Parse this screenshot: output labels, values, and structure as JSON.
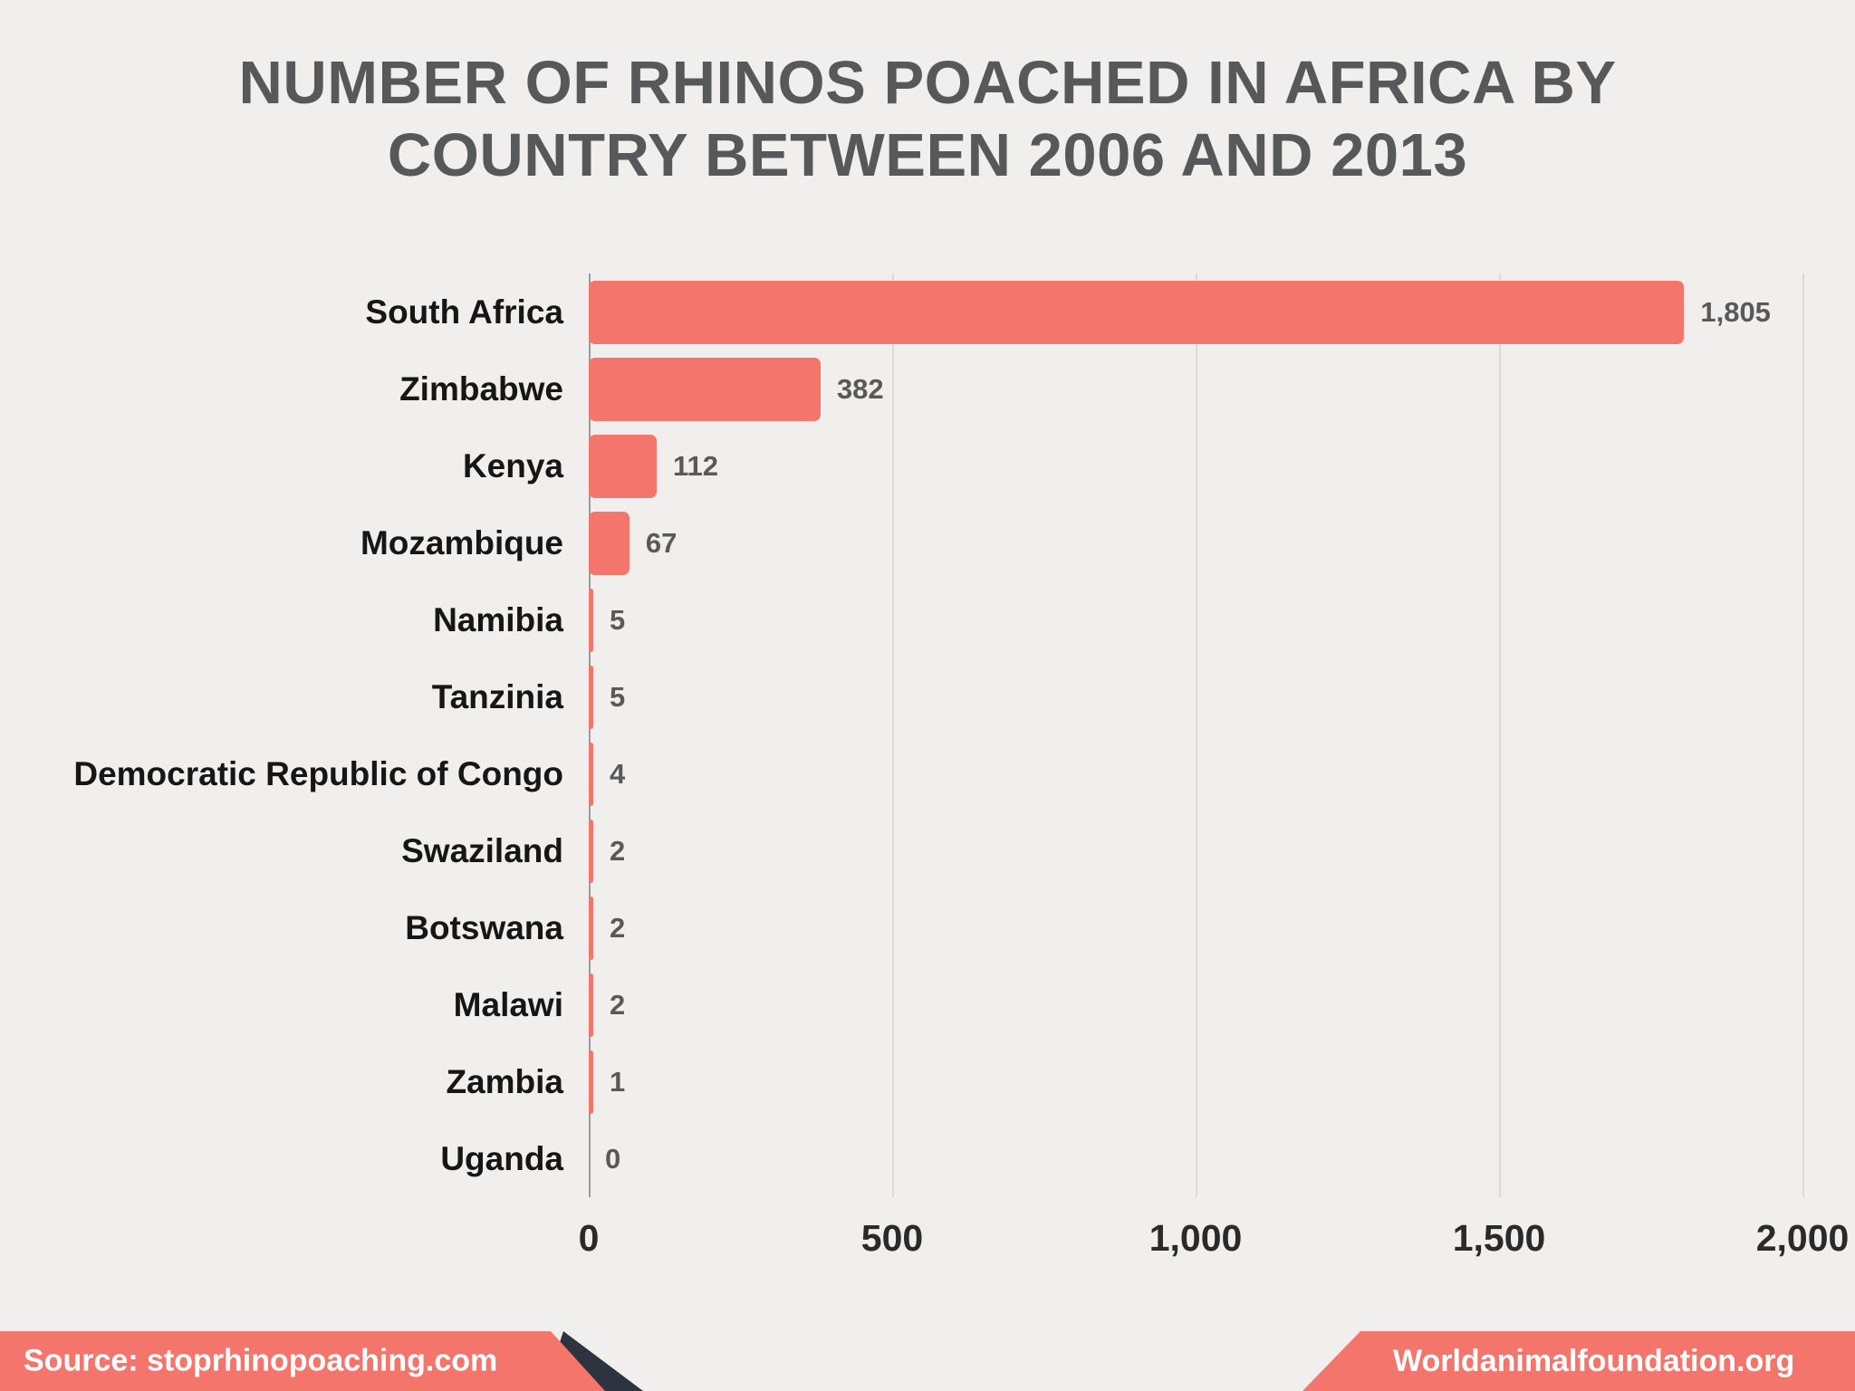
{
  "title": {
    "line1": "NUMBER OF RHINOS POACHED IN AFRICA BY",
    "line2": "COUNTRY BETWEEN 2006 AND 2013"
  },
  "chart_data": {
    "type": "bar",
    "orientation": "horizontal",
    "title": "NUMBER OF RHINOS POACHED IN AFRICA BY COUNTRY BETWEEN 2006 AND 2013",
    "categories": [
      "South Africa",
      "Zimbabwe",
      "Kenya",
      "Mozambique",
      "Namibia",
      "Tanzinia",
      "Democratic Republic of Congo",
      "Swaziland",
      "Botswana",
      "Malawi",
      "Zambia",
      "Uganda"
    ],
    "values": [
      1805,
      382,
      112,
      67,
      5,
      5,
      4,
      2,
      2,
      2,
      1,
      0
    ],
    "value_labels": [
      "1,805",
      "382",
      "112",
      "67",
      "5",
      "5",
      "4",
      "2",
      "2",
      "2",
      "1",
      "0"
    ],
    "xlabel": "",
    "ylabel": "",
    "xlim": [
      0,
      2000
    ],
    "x_ticks": [
      "0",
      "500",
      "1,000",
      "1,500",
      "2,000"
    ],
    "x_tick_values": [
      0,
      500,
      1000,
      1500,
      2000
    ],
    "grid": true,
    "legend": false,
    "bar_color": "#F4756B"
  },
  "footer": {
    "source": "Source: stoprhinopoaching.com",
    "site": "Worldanimalfoundation.org"
  },
  "colors": {
    "background": "#F1EFEE",
    "bar": "#F4756B",
    "banner": "#F4756B",
    "banner_text": "#FFFFFF",
    "title_text": "#57585A",
    "label_text": "#161616",
    "value_text": "#595959",
    "tick_text": "#2A2A2A",
    "gridline": "#DCDAD8",
    "axis_line": "#9B9B9B",
    "accent_dark": "#2E3340"
  }
}
